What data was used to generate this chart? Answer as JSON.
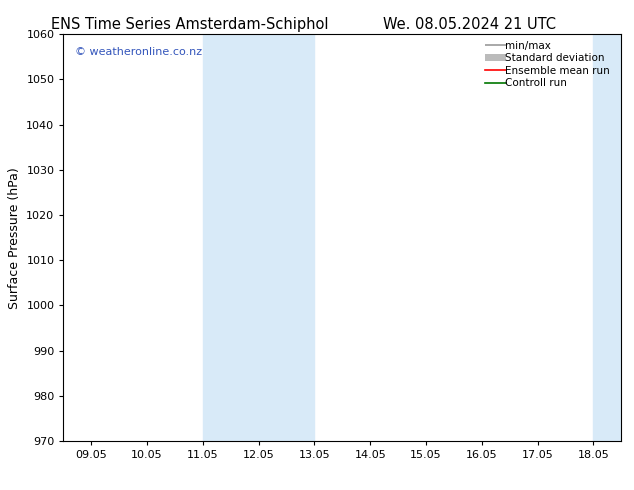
{
  "title_left": "ENS Time Series Amsterdam-Schiphol",
  "title_right": "We. 08.05.2024 21 UTC",
  "ylabel": "Surface Pressure (hPa)",
  "ylim": [
    970,
    1060
  ],
  "yticks": [
    970,
    980,
    990,
    1000,
    1010,
    1020,
    1030,
    1040,
    1050,
    1060
  ],
  "xtick_labels": [
    "09.05",
    "10.05",
    "11.05",
    "12.05",
    "13.05",
    "14.05",
    "15.05",
    "16.05",
    "17.05",
    "18.05"
  ],
  "xtick_positions": [
    0,
    1,
    2,
    3,
    4,
    5,
    6,
    7,
    8,
    9
  ],
  "xlim_min": -0.5,
  "xlim_max": 9.5,
  "shaded_regions": [
    {
      "x_start": 2.0,
      "x_end": 4.0
    },
    {
      "x_start": 9.0,
      "x_end": 9.5
    }
  ],
  "shade_color": "#d8eaf8",
  "background_color": "#ffffff",
  "watermark_text": "© weatheronline.co.nz",
  "watermark_color": "#3355bb",
  "legend_entries": [
    {
      "label": "min/max",
      "color": "#999999"
    },
    {
      "label": "Standard deviation",
      "color": "#bbbbbb"
    },
    {
      "label": "Ensemble mean run",
      "color": "#ff0000"
    },
    {
      "label": "Controll run",
      "color": "#007700"
    }
  ],
  "title_fontsize": 10.5,
  "ylabel_fontsize": 9,
  "tick_fontsize": 8,
  "legend_fontsize": 7.5,
  "watermark_fontsize": 8
}
